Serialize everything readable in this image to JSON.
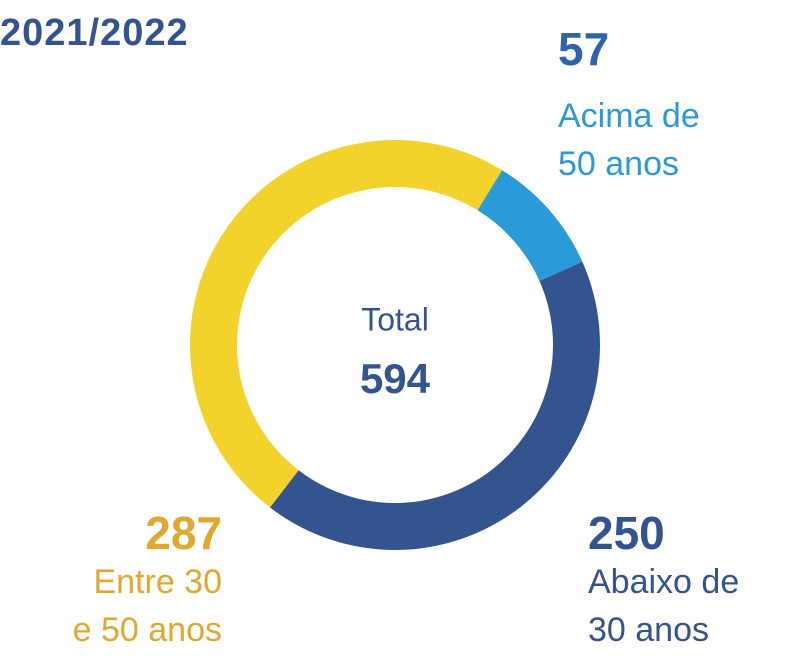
{
  "chart_data": {
    "type": "pie",
    "title": "2021/2022",
    "center_label": "Total",
    "center_value": 594,
    "categories": [
      "Acima de 50 anos",
      "Abaixo de 30 anos",
      "Entre 30 e 50 anos"
    ],
    "values": [
      57,
      250,
      287
    ],
    "colors": [
      "#2a9bd8",
      "#34548f",
      "#f4d22c"
    ],
    "label_colors": [
      "#2a9bd8",
      "#34548f",
      "#e1a72f"
    ],
    "value_label_colors": [
      "#2f63ad",
      "#34548f",
      "#e1a72f"
    ]
  }
}
